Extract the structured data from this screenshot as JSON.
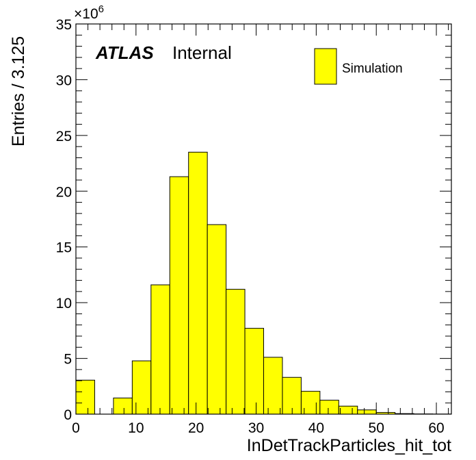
{
  "chart_data": {
    "type": "bar",
    "histogram": true,
    "bin_width": 3.125,
    "x": [
      0,
      3.125,
      6.25,
      9.375,
      12.5,
      15.625,
      18.75,
      21.875,
      25,
      28.125,
      31.25,
      34.375,
      37.5,
      40.625,
      43.75,
      46.875,
      50,
      53.125,
      56.25,
      59.375
    ],
    "series": [
      {
        "name": "Simulation",
        "values": [
          3.05,
          0,
          1.45,
          4.78,
          11.6,
          21.3,
          23.5,
          17.0,
          11.2,
          7.7,
          5.1,
          3.3,
          2.05,
          1.25,
          0.72,
          0.38,
          0.15,
          0.05,
          0.02,
          0.01
        ],
        "color": "#ffff00"
      }
    ],
    "xlabel": "InDetTrackParticles_hit_tot",
    "ylabel": "Entries / 3.125",
    "xlim": [
      0,
      62.5
    ],
    "ylim": [
      0,
      35
    ],
    "y_multiplier": "×10",
    "y_multiplier_exp": "6",
    "xticks": [
      "0",
      "10",
      "20",
      "30",
      "40",
      "50",
      "60"
    ],
    "yticks": [
      "0",
      "5",
      "10",
      "15",
      "20",
      "25",
      "30",
      "35"
    ],
    "legend_position": "top-right",
    "grid": false
  },
  "annotations": {
    "atlas": "ATLAS",
    "internal": "Internal"
  }
}
